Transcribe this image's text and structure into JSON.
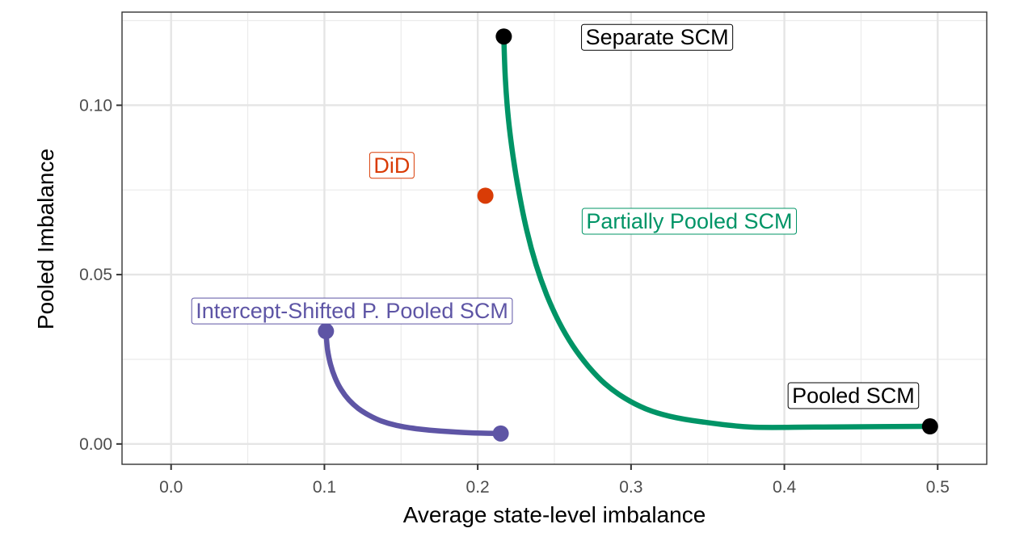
{
  "chart_data": {
    "type": "line",
    "title": "",
    "xlabel": "Average state-level imbalance",
    "ylabel": "Pooled Imbalance",
    "xlim": [
      -0.032,
      0.532
    ],
    "ylim": [
      -0.006,
      0.1275
    ],
    "x_ticks": [
      0.0,
      0.1,
      0.2,
      0.3,
      0.4,
      0.5
    ],
    "x_tick_labels": [
      "0.0",
      "0.1",
      "0.2",
      "0.3",
      "0.4",
      "0.5"
    ],
    "x_minor_ticks": [
      0.05,
      0.15,
      0.25,
      0.35,
      0.45
    ],
    "y_ticks": [
      0.0,
      0.05,
      0.1
    ],
    "y_tick_labels": [
      "0.00",
      "0.05",
      "0.10"
    ],
    "y_minor_ticks": [
      0.025,
      0.075,
      0.125
    ],
    "grid": true,
    "legend": "none",
    "series": [
      {
        "name": "Partially Pooled SCM",
        "color": "#009466",
        "type": "line",
        "x": [
          0.217,
          0.218,
          0.22,
          0.223,
          0.227,
          0.232,
          0.238,
          0.245,
          0.253,
          0.262,
          0.272,
          0.283,
          0.296,
          0.31,
          0.325,
          0.345,
          0.378,
          0.42,
          0.46,
          0.495
        ],
        "y": [
          0.1203,
          0.108,
          0.096,
          0.085,
          0.074,
          0.063,
          0.053,
          0.044,
          0.036,
          0.029,
          0.023,
          0.0178,
          0.0135,
          0.0103,
          0.0082,
          0.0066,
          0.005,
          0.005,
          0.0051,
          0.0052
        ]
      },
      {
        "name": "Intercept-Shifted P. Pooled SCM",
        "color": "#5e55a5",
        "type": "line",
        "x": [
          0.101,
          0.102,
          0.104,
          0.107,
          0.111,
          0.116,
          0.122,
          0.129,
          0.137,
          0.147,
          0.16,
          0.176,
          0.195,
          0.215
        ],
        "y": [
          0.0333,
          0.028,
          0.0235,
          0.0195,
          0.016,
          0.013,
          0.0105,
          0.0085,
          0.0068,
          0.0055,
          0.0045,
          0.0038,
          0.0033,
          0.0031
        ],
        "endpoints": [
          {
            "x": 0.101,
            "y": 0.0333
          },
          {
            "x": 0.215,
            "y": 0.0031
          }
        ]
      }
    ],
    "points": [
      {
        "name": "Separate SCM",
        "x": 0.217,
        "y": 0.1203,
        "color": "#000000"
      },
      {
        "name": "Pooled SCM",
        "x": 0.495,
        "y": 0.0052,
        "color": "#000000"
      },
      {
        "name": "DiD",
        "x": 0.205,
        "y": 0.0733,
        "color": "#d93c06"
      }
    ],
    "annotations": [
      {
        "text": "Separate SCM",
        "x": 0.317,
        "y": 0.1203,
        "color": "#000000"
      },
      {
        "text": "Pooled SCM",
        "x": 0.445,
        "y": 0.0145,
        "color": "#000000"
      },
      {
        "text": "DiD",
        "x": 0.144,
        "y": 0.0825,
        "color": "#d93c06"
      },
      {
        "text": "Partially Pooled SCM",
        "x": 0.338,
        "y": 0.066,
        "color": "#009466"
      },
      {
        "text": "Intercept-Shifted P. Pooled SCM",
        "x": 0.118,
        "y": 0.0395,
        "color": "#5e55a5"
      }
    ]
  }
}
